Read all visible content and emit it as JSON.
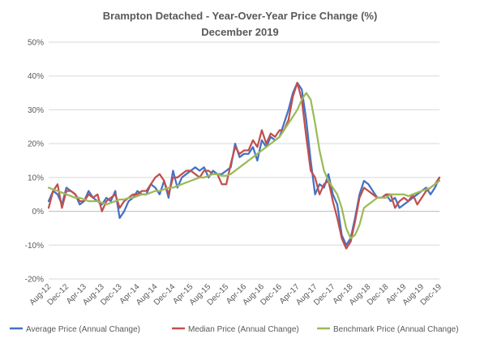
{
  "chart_data": {
    "type": "line",
    "title": "Brampton Detached - Year-Over-Year Price Change (%)",
    "subtitle": "December 2019",
    "xlabel": "",
    "ylabel": "",
    "ylim": [
      -20,
      50
    ],
    "yticks": [
      "-20%",
      "-10%",
      "0%",
      "10%",
      "20%",
      "30%",
      "40%",
      "50%"
    ],
    "grid": true,
    "legend_position": "bottom",
    "x_tick_labels": [
      "Aug-12",
      "Dec-12",
      "Apr-13",
      "Aug-13",
      "Dec-13",
      "Apr-14",
      "Aug-14",
      "Dec-14",
      "Apr-15",
      "Aug-15",
      "Dec-15",
      "Apr-16",
      "Aug-16",
      "Dec-16",
      "Apr-17",
      "Aug-17",
      "Dec-17",
      "Apr-18",
      "Aug-18",
      "Dec-18",
      "Apr-19",
      "Aug-19",
      "Dec-19"
    ],
    "x": [
      "Aug-12",
      "Sep-12",
      "Oct-12",
      "Nov-12",
      "Dec-12",
      "Jan-13",
      "Feb-13",
      "Mar-13",
      "Apr-13",
      "May-13",
      "Jun-13",
      "Jul-13",
      "Aug-13",
      "Sep-13",
      "Oct-13",
      "Nov-13",
      "Dec-13",
      "Jan-14",
      "Feb-14",
      "Mar-14",
      "Apr-14",
      "May-14",
      "Jun-14",
      "Jul-14",
      "Aug-14",
      "Sep-14",
      "Oct-14",
      "Nov-14",
      "Dec-14",
      "Jan-15",
      "Feb-15",
      "Mar-15",
      "Apr-15",
      "May-15",
      "Jun-15",
      "Jul-15",
      "Aug-15",
      "Sep-15",
      "Oct-15",
      "Nov-15",
      "Dec-15",
      "Jan-16",
      "Feb-16",
      "Mar-16",
      "Apr-16",
      "May-16",
      "Jun-16",
      "Jul-16",
      "Aug-16",
      "Sep-16",
      "Oct-16",
      "Nov-16",
      "Dec-16",
      "Jan-17",
      "Feb-17",
      "Mar-17",
      "Apr-17",
      "May-17",
      "Jun-17",
      "Jul-17",
      "Aug-17",
      "Sep-17",
      "Oct-17",
      "Nov-17",
      "Dec-17",
      "Jan-18",
      "Feb-18",
      "Mar-18",
      "Apr-18",
      "May-18",
      "Jun-18",
      "Jul-18",
      "Aug-18",
      "Sep-18",
      "Oct-18",
      "Nov-18",
      "Dec-18",
      "Jan-19",
      "Feb-19",
      "Mar-19",
      "Apr-19",
      "May-19",
      "Jun-19",
      "Jul-19",
      "Aug-19",
      "Sep-19",
      "Oct-19",
      "Nov-19",
      "Dec-19"
    ],
    "series": [
      {
        "name": "Average Price (Annual Change)",
        "color": "#4472c4",
        "values": [
          3,
          6,
          5,
          2,
          7,
          6,
          5,
          2,
          3,
          6,
          4,
          3,
          2,
          4,
          3,
          6,
          -2,
          0,
          3,
          4,
          6,
          5,
          5,
          8,
          7,
          5,
          9,
          4,
          12,
          7,
          10,
          11,
          12,
          13,
          12,
          13,
          10,
          12,
          11,
          11,
          12,
          13,
          20,
          16,
          17,
          17,
          19,
          15,
          21,
          19,
          22,
          21,
          22,
          26,
          30,
          35,
          38,
          36,
          27,
          15,
          5,
          8,
          7,
          11,
          5,
          2,
          -7,
          -10,
          -8,
          -2,
          5,
          9,
          8,
          6,
          4,
          4,
          5,
          3,
          4,
          1,
          2,
          3,
          4,
          5,
          6,
          7,
          5,
          7,
          10
        ]
      },
      {
        "name": "Median Price (Annual Change)",
        "color": "#c0504d",
        "values": [
          1,
          6,
          8,
          1,
          6,
          6,
          5,
          3,
          3,
          5,
          4,
          5,
          0,
          3,
          4,
          5,
          1,
          3,
          4,
          5,
          5,
          6,
          6,
          8,
          10,
          11,
          9,
          5,
          10,
          10,
          11,
          12,
          12,
          11,
          10,
          12,
          12,
          11,
          11,
          8,
          8,
          14,
          19,
          17,
          18,
          18,
          21,
          19,
          24,
          20,
          23,
          22,
          24,
          24,
          27,
          34,
          38,
          33,
          22,
          12,
          10,
          5,
          8,
          9,
          3,
          -2,
          -8,
          -11,
          -9,
          -3,
          4,
          7,
          6,
          5,
          4,
          4,
          5,
          5,
          1,
          3,
          4,
          3,
          5,
          2,
          4,
          6,
          7,
          8,
          10
        ]
      },
      {
        "name": "Benchmark Price (Annual Change)",
        "color": "#9bbb59",
        "values": [
          7,
          6.5,
          6,
          5.5,
          5,
          4.5,
          4,
          4,
          3.5,
          3,
          3,
          3,
          2.5,
          2,
          2.5,
          3,
          3.5,
          3.5,
          4,
          4,
          4.5,
          5,
          5,
          5.5,
          6,
          6,
          6.5,
          7,
          7,
          7.5,
          8,
          8.5,
          9,
          9.5,
          10,
          10,
          10.5,
          11,
          11,
          10.5,
          10.5,
          11,
          12,
          13,
          14,
          15,
          16,
          17,
          18,
          19,
          20,
          21,
          22,
          24,
          26,
          28,
          30,
          33,
          35,
          33,
          26,
          18,
          12,
          9,
          7,
          5,
          1,
          -5,
          -8,
          -7,
          -4,
          1,
          2,
          3,
          4,
          4,
          4,
          5,
          5,
          5,
          5,
          4.5,
          5,
          5.5,
          6,
          6.5,
          7,
          8,
          9
        ]
      }
    ]
  }
}
